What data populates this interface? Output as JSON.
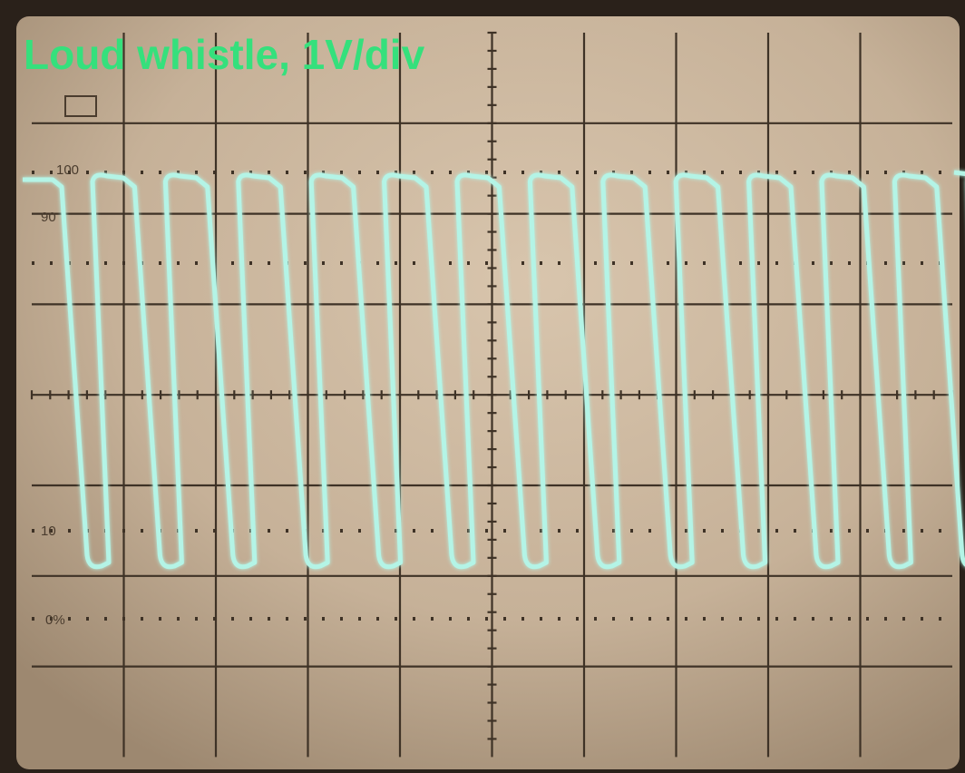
{
  "title": "Loud whistle, 1V/div",
  "graticule_labels": [
    "100",
    "90",
    "10",
    "0%"
  ]
}
